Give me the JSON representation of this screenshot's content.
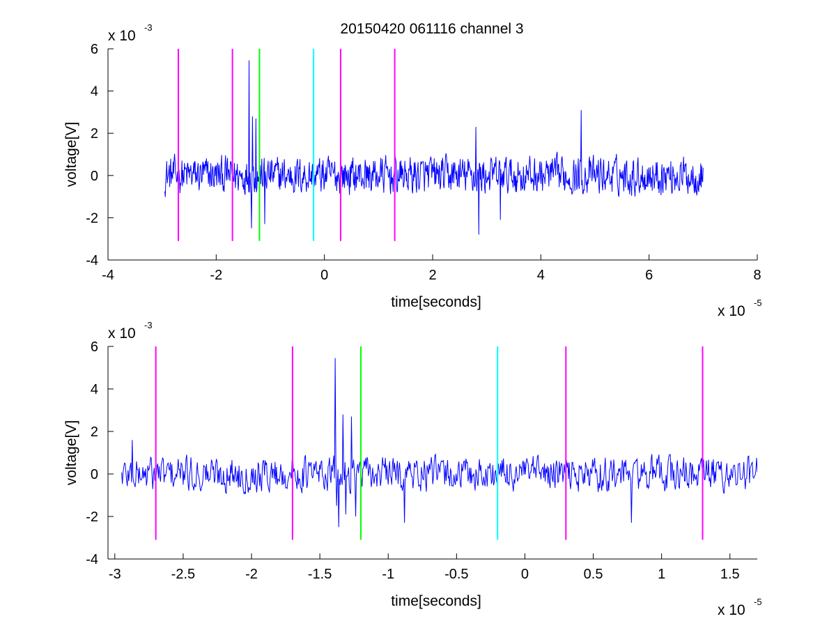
{
  "title": "20150420 061116 channel 3",
  "colors": {
    "signal": "#0000ff",
    "magenta": "#ff00ff",
    "green": "#00ff00",
    "cyan": "#00ffff",
    "axis": "#000000"
  },
  "chart_data": [
    {
      "type": "line",
      "name": "full-view",
      "xlabel": "time[seconds]",
      "ylabel": "voltage[V]",
      "xlim": [
        -4,
        8
      ],
      "ylim": [
        -4,
        6
      ],
      "xticks": [
        -4,
        -2,
        0,
        2,
        4,
        6,
        8
      ],
      "yticks": [
        -4,
        -2,
        0,
        2,
        4,
        6
      ],
      "x_multiplier": {
        "base": "x 10",
        "exp": "-5"
      },
      "y_multiplier": {
        "base": "x 10",
        "exp": "-3"
      },
      "signal": {
        "x_start": -2.95,
        "x_end": 7.0,
        "baseline_noise": 0.65,
        "spikes": [
          {
            "x": -1.39,
            "y": 5.45
          },
          {
            "x": -1.33,
            "y": 2.8
          },
          {
            "x": -1.27,
            "y": 2.7
          },
          {
            "x": -1.35,
            "y": -2.5
          },
          {
            "x": -1.1,
            "y": -2.3
          },
          {
            "x": 2.8,
            "y": 2.3
          },
          {
            "x": 2.85,
            "y": -2.8
          },
          {
            "x": 4.75,
            "y": 3.1
          },
          {
            "x": 3.25,
            "y": -2.1
          }
        ]
      },
      "markers": [
        {
          "x": -2.7,
          "color": "magenta"
        },
        {
          "x": -1.7,
          "color": "magenta"
        },
        {
          "x": -1.2,
          "color": "green"
        },
        {
          "x": -0.2,
          "color": "cyan"
        },
        {
          "x": 0.3,
          "color": "magenta"
        },
        {
          "x": 1.3,
          "color": "magenta"
        }
      ],
      "marker_range": [
        -3.1,
        6.0
      ]
    },
    {
      "type": "line",
      "name": "zoom-view",
      "xlabel": "time[seconds]",
      "ylabel": "voltage[V]",
      "xlim": [
        -3.05,
        1.7
      ],
      "ylim": [
        -4,
        6
      ],
      "xticks": [
        -3,
        -2.5,
        -2,
        -1.5,
        -1,
        -0.5,
        0,
        0.5,
        1,
        1.5
      ],
      "xtick_labels": [
        "-3",
        "-2.5",
        "-2",
        "-1.5",
        "-1",
        "-0.5",
        "0",
        "0.5",
        "1",
        "1.5"
      ],
      "yticks": [
        -4,
        -2,
        0,
        2,
        4,
        6
      ],
      "x_multiplier": {
        "base": "x 10",
        "exp": "-5"
      },
      "y_multiplier": {
        "base": "x 10",
        "exp": "-3"
      },
      "signal": {
        "x_start": -2.95,
        "x_end": 1.7,
        "baseline_noise": 0.6,
        "spikes": [
          {
            "x": -1.39,
            "y": 5.45
          },
          {
            "x": -1.38,
            "y": -1.5
          },
          {
            "x": -1.36,
            "y": -2.5
          },
          {
            "x": -1.33,
            "y": 2.8
          },
          {
            "x": -1.27,
            "y": 2.7
          },
          {
            "x": -1.31,
            "y": -1.9
          },
          {
            "x": -1.24,
            "y": -2.0
          },
          {
            "x": -0.88,
            "y": -2.3
          },
          {
            "x": 0.78,
            "y": -2.3
          },
          {
            "x": -2.87,
            "y": 1.6
          }
        ]
      },
      "markers": [
        {
          "x": -2.7,
          "color": "magenta"
        },
        {
          "x": -1.7,
          "color": "magenta"
        },
        {
          "x": -1.2,
          "color": "green"
        },
        {
          "x": -0.2,
          "color": "cyan"
        },
        {
          "x": 0.3,
          "color": "magenta"
        },
        {
          "x": 1.3,
          "color": "magenta"
        }
      ],
      "marker_range": [
        -3.1,
        6.0
      ]
    }
  ]
}
